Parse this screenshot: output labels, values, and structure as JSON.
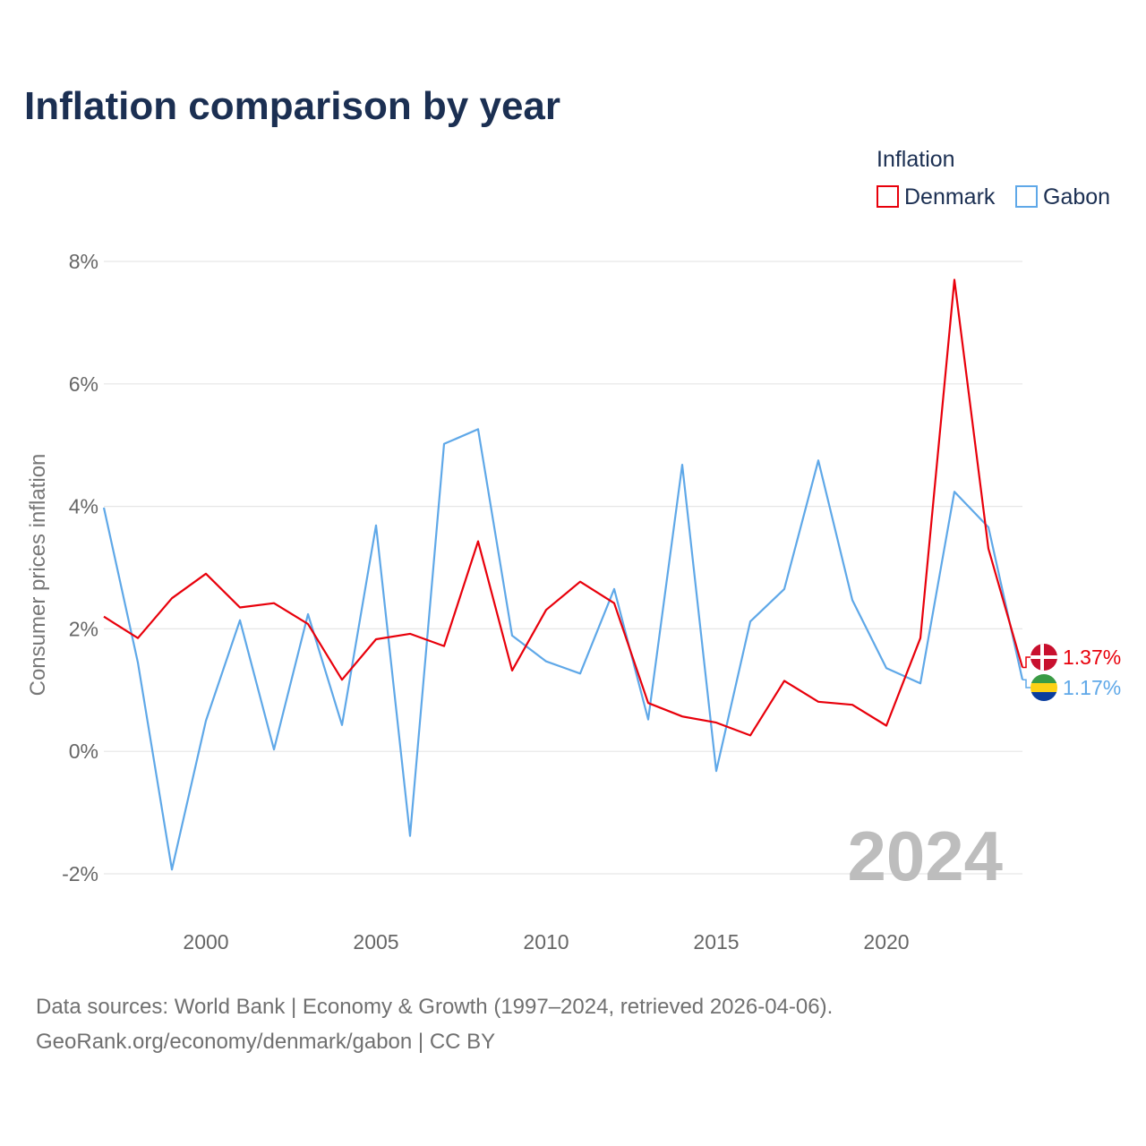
{
  "title": "Inflation comparison by year",
  "legend": {
    "title": "Inflation",
    "items": [
      {
        "name": "Denmark",
        "color": "#e8000b"
      },
      {
        "name": "Gabon",
        "color": "#5fa8e8"
      }
    ]
  },
  "watermark_year": "2024",
  "end_labels": {
    "Denmark": "1.37%",
    "Gabon": "1.17%"
  },
  "source_line1": "Data sources: World Bank | Economy & Growth (1997–2024, retrieved 2026-04-06).",
  "source_line2": "GeoRank.org/economy/denmark/gabon | CC BY",
  "chart_data": {
    "type": "line",
    "title": "Inflation comparison by year",
    "xlabel": "",
    "ylabel": "Consumer prices inflation",
    "xlim": [
      1997,
      2024
    ],
    "ylim": [
      -2.8,
      8.5
    ],
    "yticks": [
      -2,
      0,
      2,
      4,
      6,
      8
    ],
    "ytick_labels": [
      "-2%",
      "0%",
      "2%",
      "4%",
      "6%",
      "8%"
    ],
    "xticks": [
      2000,
      2005,
      2010,
      2015,
      2020
    ],
    "xtick_labels": [
      "2000",
      "2005",
      "2010",
      "2015",
      "2020"
    ],
    "grid": true,
    "legend_position": "top-right",
    "x": [
      1997,
      1998,
      1999,
      2000,
      2001,
      2002,
      2003,
      2004,
      2005,
      2006,
      2007,
      2008,
      2009,
      2010,
      2011,
      2012,
      2013,
      2014,
      2015,
      2016,
      2017,
      2018,
      2019,
      2020,
      2021,
      2022,
      2023,
      2024
    ],
    "series": [
      {
        "name": "Denmark",
        "color": "#e8000b",
        "values": [
          2.2,
          1.85,
          2.5,
          2.9,
          2.35,
          2.42,
          2.08,
          1.17,
          1.83,
          1.92,
          1.72,
          3.43,
          1.32,
          2.31,
          2.77,
          2.42,
          0.79,
          0.57,
          0.47,
          0.26,
          1.15,
          0.81,
          0.76,
          0.42,
          1.85,
          7.7,
          3.31,
          1.37
        ]
      },
      {
        "name": "Gabon",
        "color": "#5fa8e8",
        "values": [
          3.98,
          1.45,
          -1.93,
          0.5,
          2.14,
          0.03,
          2.24,
          0.43,
          3.69,
          -1.38,
          5.02,
          5.26,
          1.89,
          1.47,
          1.27,
          2.65,
          0.52,
          4.68,
          -0.32,
          2.12,
          2.65,
          4.75,
          2.47,
          1.36,
          1.11,
          4.24,
          3.66,
          1.17
        ]
      }
    ]
  }
}
